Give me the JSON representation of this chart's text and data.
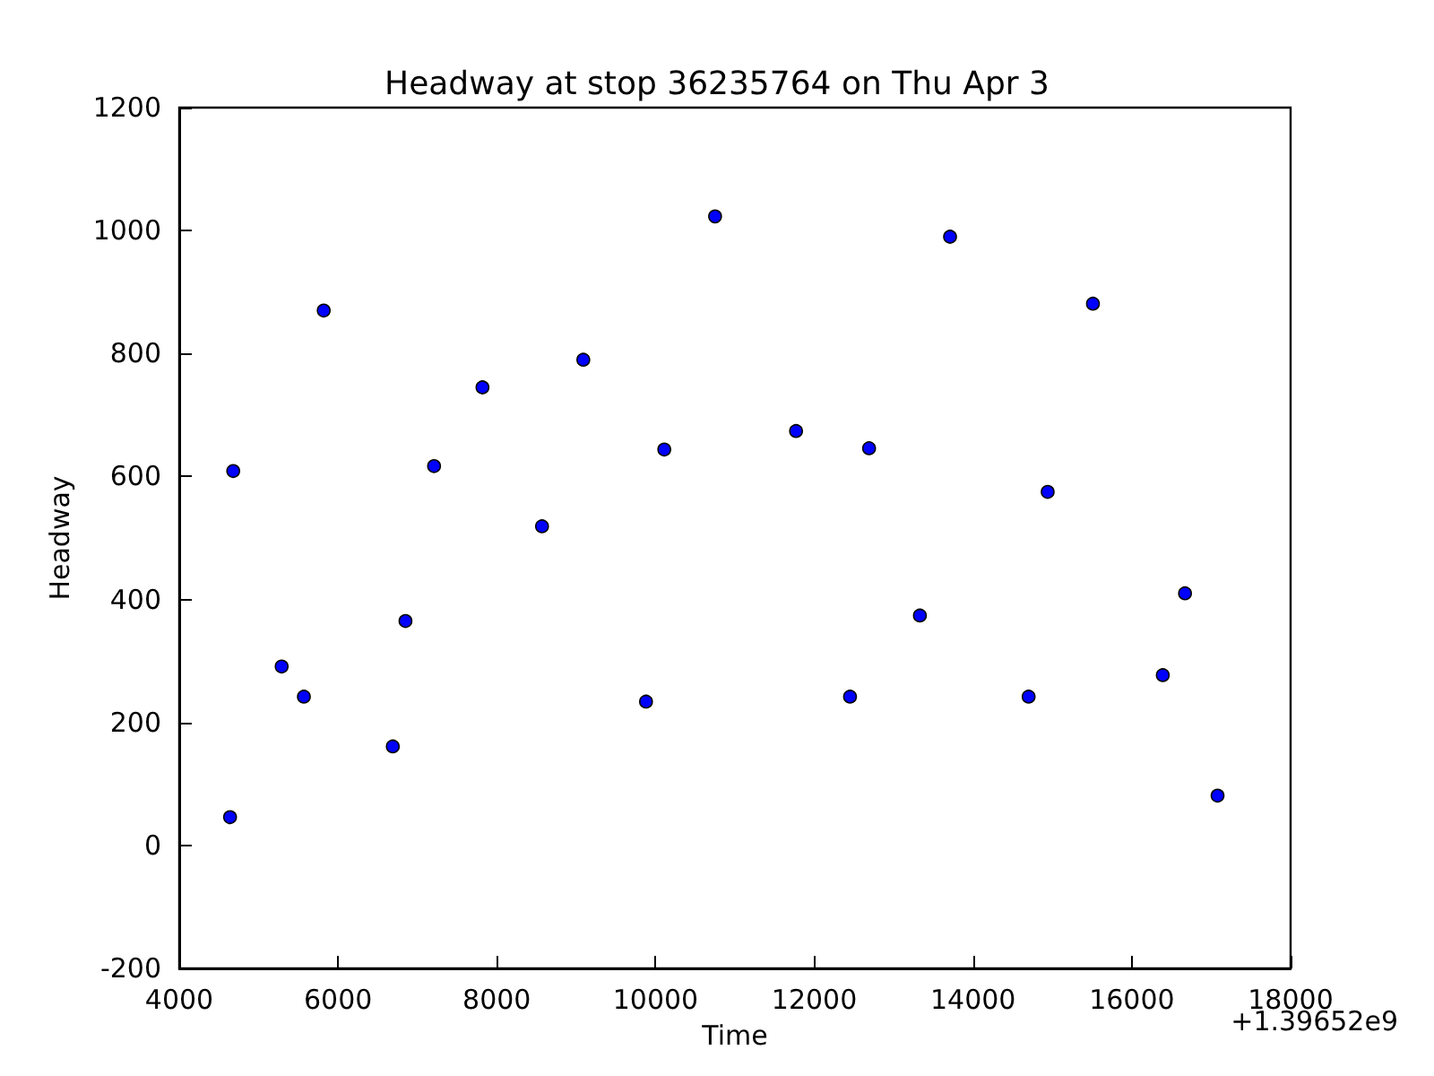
{
  "chart_data": {
    "type": "scatter",
    "title": "Headway at stop 36235764 on Thu Apr 3",
    "xlabel": "Time",
    "ylabel": "Headway",
    "x": [
      4640,
      4680,
      5290,
      5570,
      5820,
      6690,
      6850,
      7210,
      7820,
      8570,
      9090,
      9880,
      10110,
      10750,
      11770,
      12450,
      12690,
      13330,
      13710,
      14700,
      14940,
      15510,
      16390,
      16670,
      17080
    ],
    "series": [
      {
        "color": "#0000ff",
        "values": [
          46,
          609,
          291,
          242,
          870,
          161,
          365,
          617,
          745,
          519,
          790,
          234,
          644,
          1023,
          674,
          242,
          646,
          374,
          990,
          242,
          575,
          881,
          277,
          410,
          81
        ]
      }
    ],
    "xlim": [
      4000,
      18000
    ],
    "xticks": [
      4000,
      6000,
      8000,
      10000,
      12000,
      14000,
      16000,
      18000
    ],
    "ylim": [
      -200,
      1200
    ],
    "yticks": [
      -200,
      0,
      200,
      400,
      600,
      800,
      1000,
      1200
    ],
    "marker": "circle",
    "grid": false,
    "annotations": [
      "+1.39652e9"
    ]
  }
}
